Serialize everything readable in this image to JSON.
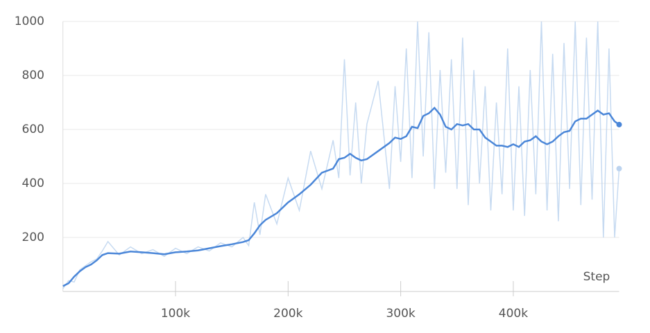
{
  "chart_data": {
    "type": "line",
    "x_label": "Step",
    "x": [
      0,
      5000,
      10000,
      15000,
      20000,
      25000,
      30000,
      35000,
      40000,
      50000,
      60000,
      70000,
      80000,
      90000,
      100000,
      110000,
      120000,
      130000,
      140000,
      150000,
      160000,
      165000,
      170000,
      175000,
      180000,
      190000,
      200000,
      210000,
      220000,
      230000,
      240000,
      245000,
      250000,
      255000,
      260000,
      265000,
      270000,
      280000,
      290000,
      295000,
      300000,
      305000,
      310000,
      315000,
      320000,
      325000,
      330000,
      335000,
      340000,
      345000,
      350000,
      355000,
      360000,
      365000,
      370000,
      375000,
      380000,
      385000,
      390000,
      395000,
      400000,
      405000,
      410000,
      415000,
      420000,
      425000,
      430000,
      435000,
      440000,
      445000,
      450000,
      455000,
      460000,
      465000,
      470000,
      475000,
      480000,
      485000,
      490000,
      494000
    ],
    "series": [
      {
        "color": "#bcd3ef",
        "values": [
          10,
          40,
          35,
          80,
          95,
          110,
          120,
          150,
          185,
          135,
          165,
          140,
          155,
          130,
          160,
          140,
          165,
          150,
          180,
          165,
          200,
          170,
          330,
          210,
          360,
          250,
          420,
          300,
          520,
          380,
          560,
          420,
          860,
          430,
          700,
          400,
          620,
          780,
          380,
          760,
          480,
          900,
          420,
          1000,
          500,
          960,
          380,
          820,
          440,
          860,
          380,
          940,
          320,
          820,
          400,
          760,
          300,
          700,
          360,
          900,
          300,
          760,
          280,
          820,
          360,
          1000,
          300,
          880,
          260,
          920,
          380,
          1000,
          320,
          940,
          340,
          1000,
          200,
          900,
          200,
          455
        ]
      },
      {
        "color": "#4a86d8",
        "values": [
          20,
          30,
          55,
          75,
          90,
          100,
          115,
          135,
          142,
          140,
          148,
          145,
          142,
          138,
          145,
          148,
          152,
          160,
          168,
          175,
          183,
          190,
          215,
          245,
          265,
          290,
          330,
          360,
          395,
          440,
          455,
          490,
          495,
          510,
          495,
          485,
          490,
          520,
          550,
          570,
          565,
          575,
          610,
          605,
          650,
          660,
          680,
          655,
          610,
          600,
          620,
          615,
          620,
          600,
          600,
          570,
          555,
          540,
          540,
          535,
          545,
          535,
          555,
          560,
          575,
          555,
          545,
          555,
          575,
          590,
          595,
          630,
          640,
          640,
          655,
          670,
          655,
          660,
          630,
          618
        ]
      }
    ],
    "xlim": [
      0,
      494000
    ],
    "xticks": [
      {
        "value": 100000,
        "label": "100k"
      },
      {
        "value": 200000,
        "label": "200k"
      },
      {
        "value": 300000,
        "label": "300k"
      },
      {
        "value": 400000,
        "label": "400k"
      }
    ],
    "ylim": [
      0,
      1000
    ],
    "yticks": [
      200,
      400,
      600,
      800,
      1000
    ],
    "grid": true
  }
}
